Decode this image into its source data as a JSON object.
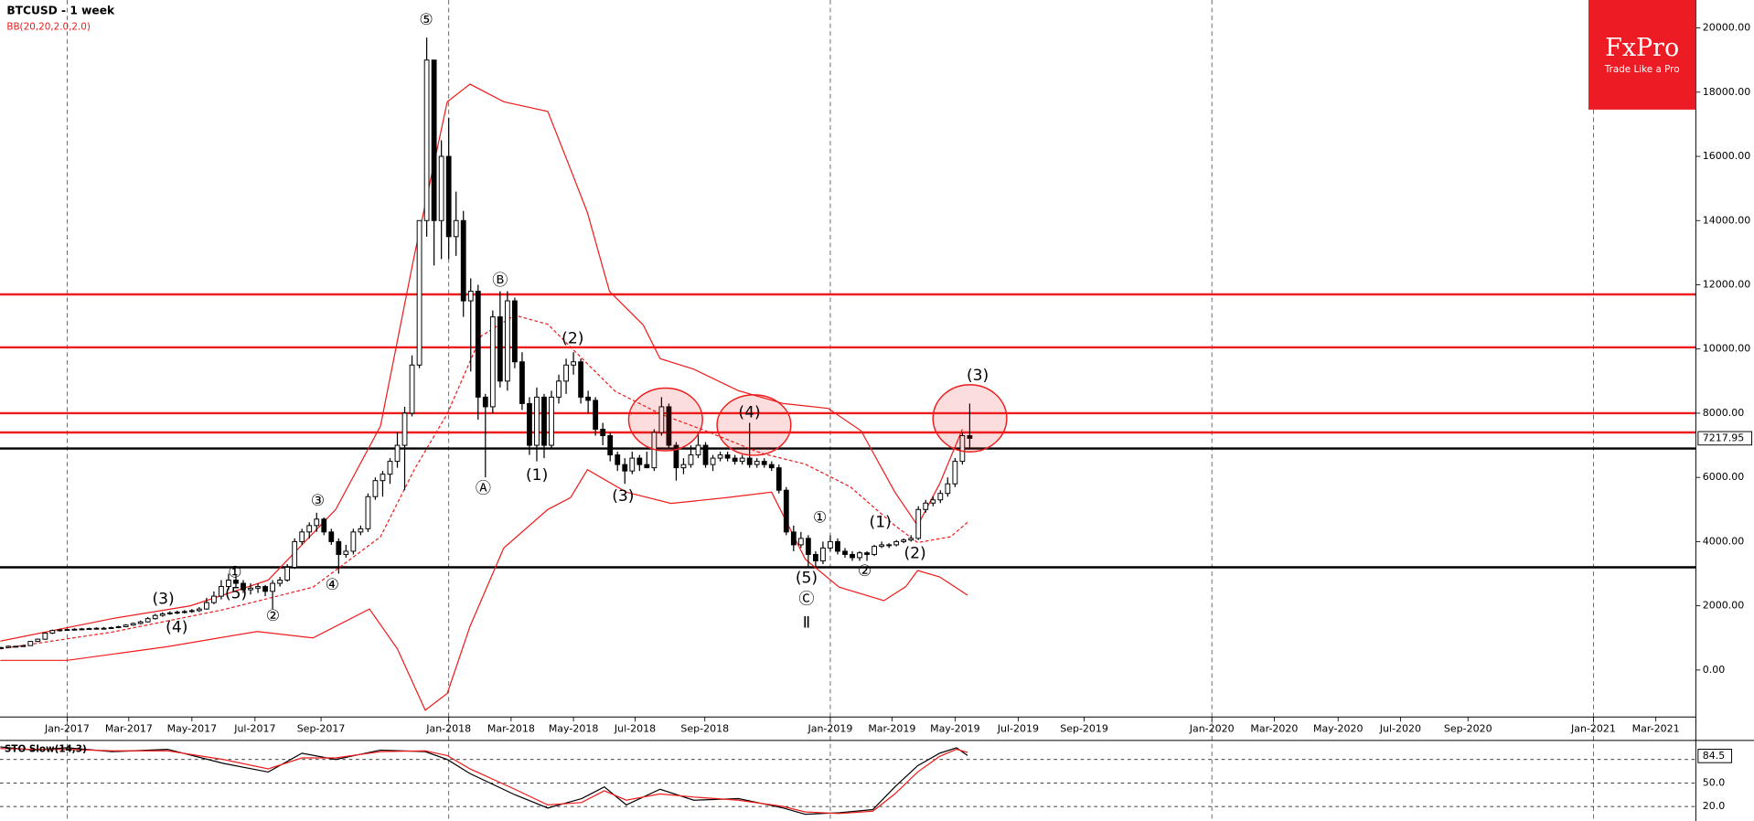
{
  "chart_data": {
    "type": "candlestick",
    "title": "BTCUSD - 1 week",
    "indicator": "BB(20,20,2.0,2.0)",
    "logo": {
      "brand": "FxPro",
      "tagline": "Trade Like a Pro"
    },
    "xlim": [
      -9.15,
      221.95
    ],
    "xticks": [
      {
        "value": 0,
        "label": "Jan-2017"
      },
      {
        "value": 8.4,
        "label": "Mar-2017"
      },
      {
        "value": 17,
        "label": "May-2017"
      },
      {
        "value": 25.6,
        "label": "Jul-2017"
      },
      {
        "value": 34.6,
        "label": "Sep-2017"
      },
      {
        "value": 52,
        "label": "Jan-2018"
      },
      {
        "value": 60.5,
        "label": "Mar-2018"
      },
      {
        "value": 69,
        "label": "May-2018"
      },
      {
        "value": 77.4,
        "label": "Jul-2018"
      },
      {
        "value": 86.9,
        "label": "Sep-2018"
      },
      {
        "value": 104,
        "label": "Jan-2019"
      },
      {
        "value": 112.4,
        "label": "Mar-2019"
      },
      {
        "value": 121,
        "label": "May-2019"
      },
      {
        "value": 129.6,
        "label": "Jul-2019"
      },
      {
        "value": 138.6,
        "label": "Sep-2019"
      },
      {
        "value": 156,
        "label": "Jan-2020"
      },
      {
        "value": 164.5,
        "label": "Mar-2020"
      },
      {
        "value": 173.2,
        "label": "May-2020"
      },
      {
        "value": 181.7,
        "label": "Jul-2020"
      },
      {
        "value": 190.9,
        "label": "Sep-2020"
      },
      {
        "value": 208,
        "label": "Jan-2021"
      },
      {
        "value": 216.5,
        "label": "Mar-2021"
      }
    ],
    "xgrid": [
      0,
      52,
      104,
      156,
      208
    ],
    "ylim": [
      -1463,
      20871
    ],
    "yticks": [
      {
        "value": 0,
        "label": "0.00"
      },
      {
        "value": 2000,
        "label": "2000.00"
      },
      {
        "value": 4000,
        "label": "4000.00"
      },
      {
        "value": 6000,
        "label": "6000.00"
      },
      {
        "value": 8000,
        "label": "8000.00"
      },
      {
        "value": 10000,
        "label": "10000.00"
      },
      {
        "value": 12000,
        "label": "12000.00"
      },
      {
        "value": 14000,
        "label": "14000.00"
      },
      {
        "value": 16000,
        "label": "16000.00"
      },
      {
        "value": 18000,
        "label": "18000.00"
      },
      {
        "value": 20000,
        "label": "20000.00"
      }
    ],
    "last_price": 7217.95,
    "hlines": [
      {
        "value": 11700,
        "color": "#ee1c1c"
      },
      {
        "value": 10050,
        "color": "#ee1c1c"
      },
      {
        "value": 8000,
        "color": "#ee1c1c"
      },
      {
        "value": 7400,
        "color": "#ee1c1c"
      },
      {
        "value": 6900,
        "color": "#000000"
      },
      {
        "value": 3200,
        "color": "#000000"
      }
    ],
    "x": [
      -9,
      -8,
      -7,
      -6,
      -5,
      -4,
      -3,
      -2,
      -1,
      0,
      1,
      2,
      3,
      4,
      5,
      6,
      7,
      8,
      9,
      10,
      11,
      12,
      13,
      14,
      15,
      16,
      17,
      18,
      19,
      20,
      21,
      22,
      23,
      24,
      25,
      26,
      27,
      28,
      29,
      30,
      31,
      32,
      33,
      34,
      35,
      36,
      37,
      38,
      39,
      40,
      41,
      42,
      43,
      44,
      45,
      46,
      47,
      48,
      49,
      50,
      51,
      52,
      53,
      54,
      55,
      56,
      57,
      58,
      59,
      60,
      61,
      62,
      63,
      64,
      65,
      66,
      67,
      68,
      69,
      70,
      71,
      72,
      73,
      74,
      75,
      76,
      77,
      78,
      79,
      80,
      81,
      82,
      83,
      84,
      85,
      86,
      87,
      88,
      89,
      90,
      91,
      92,
      93,
      94,
      95,
      96,
      97,
      98,
      99,
      100,
      101,
      102,
      103,
      104,
      105,
      106,
      107,
      108,
      109,
      110,
      111,
      112,
      113,
      114,
      115,
      116,
      117,
      118,
      119,
      120,
      121,
      122,
      123
    ],
    "candles": [
      [
        680,
        720,
        650,
        700
      ],
      [
        700,
        760,
        690,
        740
      ],
      [
        740,
        750,
        710,
        730
      ],
      [
        730,
        780,
        720,
        760
      ],
      [
        760,
        900,
        750,
        890
      ],
      [
        890,
        980,
        870,
        960
      ],
      [
        960,
        1180,
        940,
        1150
      ],
      [
        1150,
        1260,
        1120,
        1230
      ],
      [
        1230,
        1280,
        1200,
        1250
      ],
      [
        1250,
        1290,
        1220,
        1260
      ],
      [
        1260,
        1300,
        1230,
        1270
      ],
      [
        1270,
        1310,
        1240,
        1280
      ],
      [
        1280,
        1320,
        1250,
        1290
      ],
      [
        1290,
        1330,
        1260,
        1300
      ],
      [
        1300,
        1340,
        1270,
        1300
      ],
      [
        1300,
        1350,
        1280,
        1320
      ],
      [
        1320,
        1380,
        1300,
        1350
      ],
      [
        1350,
        1430,
        1330,
        1400
      ],
      [
        1400,
        1480,
        1380,
        1450
      ],
      [
        1450,
        1540,
        1420,
        1500
      ],
      [
        1500,
        1650,
        1480,
        1600
      ],
      [
        1600,
        1750,
        1570,
        1700
      ],
      [
        1700,
        1800,
        1660,
        1750
      ],
      [
        1750,
        1830,
        1720,
        1780
      ],
      [
        1780,
        1850,
        1740,
        1800
      ],
      [
        1800,
        1870,
        1760,
        1820
      ],
      [
        1820,
        1900,
        1780,
        1850
      ],
      [
        1850,
        1960,
        1810,
        1900
      ],
      [
        1900,
        2250,
        1880,
        2100
      ],
      [
        2100,
        2450,
        2050,
        2300
      ],
      [
        2300,
        2800,
        2200,
        2600
      ],
      [
        2600,
        3000,
        2500,
        2800
      ],
      [
        2800,
        2950,
        2550,
        2700
      ],
      [
        2700,
        2800,
        2400,
        2500
      ],
      [
        2500,
        2700,
        2350,
        2550
      ],
      [
        2550,
        2700,
        2400,
        2600
      ],
      [
        2600,
        2650,
        2300,
        2450
      ],
      [
        2450,
        2800,
        1900,
        2700
      ],
      [
        2700,
        2900,
        2600,
        2800
      ],
      [
        2800,
        3300,
        2750,
        3200
      ],
      [
        3200,
        4100,
        3150,
        4000
      ],
      [
        4000,
        4400,
        3900,
        4300
      ],
      [
        4300,
        4600,
        4100,
        4500
      ],
      [
        4500,
        4900,
        4300,
        4700
      ],
      [
        4700,
        4750,
        4200,
        4300
      ],
      [
        4300,
        4400,
        3900,
        4000
      ],
      [
        4000,
        4100,
        3000,
        3600
      ],
      [
        3600,
        3900,
        3500,
        3700
      ],
      [
        3700,
        4400,
        3600,
        4300
      ],
      [
        4300,
        4500,
        4200,
        4400
      ],
      [
        4400,
        5500,
        4300,
        5400
      ],
      [
        5400,
        6000,
        5300,
        5900
      ],
      [
        5900,
        6200,
        5400,
        6100
      ],
      [
        6100,
        6600,
        5800,
        6500
      ],
      [
        6500,
        7400,
        6300,
        7000
      ],
      [
        7000,
        8200,
        5600,
        8000
      ],
      [
        8000,
        9800,
        7900,
        9500
      ],
      [
        9500,
        14000,
        9400,
        14000
      ],
      [
        14000,
        19700,
        13500,
        19000
      ],
      [
        19000,
        19000,
        12600,
        14000
      ],
      [
        14000,
        16500,
        12800,
        16000
      ],
      [
        16000,
        17200,
        12800,
        13500
      ],
      [
        13500,
        14900,
        12900,
        14000
      ],
      [
        14000,
        14300,
        11000,
        11500
      ],
      [
        11500,
        12200,
        9300,
        11800
      ],
      [
        11800,
        12000,
        7800,
        8500
      ],
      [
        8500,
        8600,
        6000,
        8200
      ],
      [
        8200,
        11200,
        8000,
        11000
      ],
      [
        11000,
        11800,
        8800,
        9000
      ],
      [
        9000,
        11800,
        8700,
        11500
      ],
      [
        11500,
        11600,
        9400,
        9600
      ],
      [
        9600,
        9900,
        8100,
        8300
      ],
      [
        8300,
        8500,
        6700,
        7000
      ],
      [
        7000,
        8800,
        6500,
        8500
      ],
      [
        8500,
        8600,
        6600,
        7000
      ],
      [
        7000,
        8700,
        6900,
        8500
      ],
      [
        8500,
        9200,
        8300,
        9000
      ],
      [
        9000,
        9700,
        8600,
        9500
      ],
      [
        9500,
        9900,
        9200,
        9600
      ],
      [
        9600,
        9700,
        8300,
        8500
      ],
      [
        8500,
        8700,
        8000,
        8400
      ],
      [
        8400,
        8500,
        7300,
        7500
      ],
      [
        7500,
        7700,
        7000,
        7300
      ],
      [
        7300,
        7400,
        6500,
        6700
      ],
      [
        6700,
        6800,
        6200,
        6400
      ],
      [
        6400,
        6600,
        5800,
        6200
      ],
      [
        6200,
        6800,
        6100,
        6600
      ],
      [
        6600,
        6700,
        6200,
        6400
      ],
      [
        6400,
        6800,
        6300,
        6300
      ],
      [
        6300,
        7500,
        6200,
        7400
      ],
      [
        7400,
        8500,
        7300,
        8200
      ],
      [
        8200,
        8300,
        6900,
        7000
      ],
      [
        7000,
        7100,
        5900,
        6300
      ],
      [
        6300,
        6600,
        6100,
        6400
      ],
      [
        6400,
        7000,
        6300,
        6700
      ],
      [
        6700,
        7400,
        6600,
        7000
      ],
      [
        7000,
        7100,
        6300,
        6400
      ],
      [
        6400,
        6700,
        6200,
        6600
      ],
      [
        6600,
        6800,
        6500,
        6700
      ],
      [
        6700,
        6800,
        6500,
        6600
      ],
      [
        6600,
        6700,
        6400,
        6500
      ],
      [
        6500,
        6700,
        6400,
        6600
      ],
      [
        6600,
        7700,
        6300,
        6400
      ],
      [
        6400,
        6600,
        6300,
        6500
      ],
      [
        6500,
        6600,
        6300,
        6400
      ],
      [
        6400,
        6500,
        6200,
        6300
      ],
      [
        6300,
        6400,
        5500,
        5600
      ],
      [
        5600,
        5700,
        4200,
        4300
      ],
      [
        4300,
        4500,
        3700,
        3900
      ],
      [
        3900,
        4300,
        3800,
        4100
      ],
      [
        4100,
        4200,
        3200,
        3600
      ],
      [
        3600,
        3700,
        3200,
        3400
      ],
      [
        3400,
        4000,
        3300,
        3800
      ],
      [
        3800,
        4200,
        3700,
        4000
      ],
      [
        4000,
        4100,
        3600,
        3700
      ],
      [
        3700,
        3800,
        3500,
        3600
      ],
      [
        3600,
        3700,
        3400,
        3500
      ],
      [
        3500,
        3700,
        3400,
        3650
      ],
      [
        3650,
        3700,
        3400,
        3600
      ],
      [
        3600,
        3900,
        3550,
        3850
      ],
      [
        3850,
        4000,
        3800,
        3900
      ],
      [
        3900,
        3950,
        3800,
        3900
      ],
      [
        3900,
        4050,
        3850,
        4000
      ],
      [
        4000,
        4100,
        3950,
        4050
      ],
      [
        4050,
        4200,
        4000,
        4100
      ],
      [
        4100,
        5100,
        4050,
        5000
      ],
      [
        5000,
        5300,
        4900,
        5200
      ],
      [
        5200,
        5400,
        5100,
        5300
      ],
      [
        5300,
        5600,
        5200,
        5500
      ],
      [
        5500,
        6000,
        5400,
        5800
      ],
      [
        5800,
        6600,
        5700,
        6500
      ],
      [
        6500,
        7400,
        6400,
        7300
      ],
      [
        7300,
        8300,
        6900,
        7218
      ]
    ],
    "bands": [
      {
        "color": "#ee1c1c",
        "dash": false,
        "x": [
          -9.1,
          6.1,
          16.8,
          27.4,
          36.6,
          42.7,
          47.3,
          51.8,
          54.9,
          59.5,
          65.5,
          68.6,
          70.9,
          73.9,
          78.5,
          80.8,
          85.4,
          91.5,
          97.6,
          103.7,
          108.2,
          112.8,
          115.9,
          118.9,
          122
        ],
        "values": [
          900,
          1600,
          2000,
          2800,
          5000,
          7600,
          12900,
          17700,
          18250,
          17700,
          17400,
          15600,
          14250,
          11800,
          10750,
          9700,
          9370,
          8700,
          8300,
          8150,
          7450,
          5540,
          4500,
          5800,
          7500
        ]
      },
      {
        "color": "#ee1c1c",
        "dash": true,
        "x": [
          -9.1,
          6.1,
          21.3,
          33.5,
          42.7,
          47.3,
          51.8,
          56.4,
          61,
          65.5,
          70.1,
          74.7,
          80.8,
          86.9,
          94.5,
          100.6,
          106.7,
          112.8,
          115.9,
          120.4,
          122.7
        ],
        "values": [
          660,
          1180,
          1880,
          2580,
          4150,
          6240,
          7980,
          10400,
          11050,
          10770,
          9720,
          8680,
          7980,
          7460,
          6760,
          6410,
          5710,
          4500,
          3970,
          4150,
          4600
        ]
      },
      {
        "color": "#ee1c1c",
        "dash": false,
        "x": [
          -9.1,
          0,
          13.7,
          25.9,
          33.5,
          41.2,
          45,
          48.8,
          51.8,
          54.9,
          59.5,
          65.5,
          68.6,
          70.9,
          76.2,
          82.3,
          89.9,
          96,
          100.6,
          105.2,
          111.3,
          114.3,
          115.9,
          118.9,
          122.7
        ],
        "values": [
          300,
          300,
          730,
          1200,
          1000,
          1900,
          660,
          -1250,
          -730,
          1360,
          3800,
          5000,
          5370,
          6240,
          5540,
          5190,
          5370,
          5540,
          3450,
          2580,
          2160,
          2600,
          3100,
          2900,
          2330
        ]
      }
    ],
    "annotations": [
      "⑤",
      "①",
      "(5)",
      "(3)",
      "(4)",
      "②",
      "③",
      "④",
      "Ⓐ",
      "Ⓑ",
      "(1)",
      "(2)",
      "(3)",
      "(4)",
      "①",
      "(5)",
      "Ⓒ",
      "Ⅱ",
      "(1)",
      "②",
      "(2)",
      "(3)"
    ],
    "stochastic": {
      "title": "STO Slow(14,3)",
      "ylim": [
        0,
        100
      ],
      "yticks": [
        {
          "value": 80,
          "label": "80.0"
        },
        {
          "value": 50,
          "label": "50.0"
        },
        {
          "value": 20,
          "label": "20.0"
        }
      ],
      "last": 84.5,
      "series": [
        {
          "color": "#000000",
          "x": [
            -9.1,
            -4.6,
            0,
            6.1,
            13.7,
            21.3,
            27.4,
            32,
            36.6,
            42.7,
            48.8,
            51.8,
            54.9,
            61,
            65.5,
            70.1,
            73.2,
            76.2,
            80.8,
            85.4,
            91.5,
            97.6,
            100.6,
            105.2,
            109.8,
            112.8,
            115.9,
            118.9,
            121.2,
            122.7
          ],
          "values": [
            96,
            92,
            95,
            90,
            93,
            75,
            64,
            88,
            80,
            92,
            90,
            80,
            62,
            35,
            18,
            30,
            45,
            22,
            42,
            28,
            30,
            18,
            10,
            12,
            16,
            45,
            72,
            88,
            95,
            85
          ]
        },
        {
          "color": "#ee1c1c",
          "x": [
            -9.1,
            -4.6,
            0,
            6.1,
            13.7,
            21.3,
            27.4,
            32,
            36.6,
            42.7,
            48.8,
            51.8,
            54.9,
            61,
            65.5,
            70.1,
            73.2,
            76.2,
            80.8,
            85.4,
            91.5,
            97.6,
            100.6,
            105.2,
            109.8,
            112.8,
            115.9,
            118.9,
            121.2,
            122.7
          ],
          "values": [
            94,
            93,
            93,
            91,
            91,
            80,
            68,
            82,
            82,
            90,
            91,
            85,
            68,
            42,
            22,
            25,
            40,
            28,
            36,
            32,
            28,
            20,
            13,
            11,
            14,
            36,
            64,
            84,
            93,
            89
          ]
        }
      ]
    }
  }
}
